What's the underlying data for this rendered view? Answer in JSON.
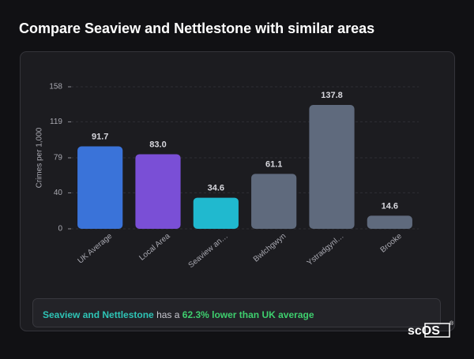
{
  "chart_data": {
    "type": "bar",
    "title": "Compare Seaview and Nettlestone with similar areas",
    "y_label": "Crimes per 1,000",
    "categories": [
      "UK Average",
      "Local Area",
      "Seaview an…",
      "Bwlchgwyn",
      "Ystradgynl…",
      "Brooke"
    ],
    "values": [
      91.7,
      83.0,
      34.6,
      61.1,
      137.8,
      14.6
    ],
    "value_labels": [
      "91.7",
      "83.0",
      "34.6",
      "61.1",
      "137.8",
      "14.6"
    ],
    "colors": [
      "#3a73d9",
      "#7a4fd6",
      "#20b9cf",
      "#5f6a7d",
      "#5f6a7d",
      "#5f6a7d"
    ],
    "ylim": [
      0,
      158
    ],
    "yticks": [
      0,
      40,
      79,
      119,
      158
    ],
    "grid": true
  },
  "summary": {
    "place": "Seaview and Nettlestone",
    "middle": "has a",
    "highlight": "62.3% lower than UK average"
  },
  "logo": {
    "text": "scOS",
    "mark": "®"
  }
}
